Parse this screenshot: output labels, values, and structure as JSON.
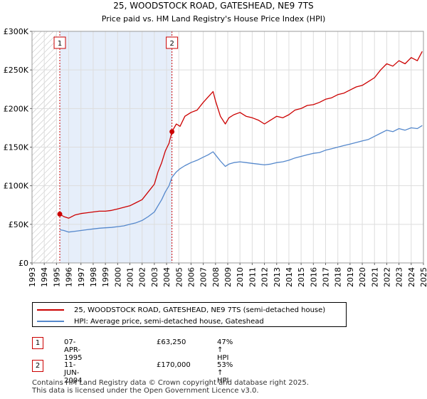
{
  "chart_data": {
    "type": "line",
    "title": "25, WOODSTOCK ROAD, GATESHEAD, NE9 7TS",
    "subtitle": "Price paid vs. HM Land Registry's House Price Index (HPI)",
    "xlim": [
      1993,
      2025
    ],
    "ylim": [
      0,
      300000
    ],
    "yticks": [
      0,
      50000,
      100000,
      150000,
      200000,
      250000,
      300000
    ],
    "ytick_labels": [
      "£0",
      "£50K",
      "£100K",
      "£150K",
      "£200K",
      "£250K",
      "£300K"
    ],
    "xticks": [
      1993,
      1994,
      1995,
      1996,
      1997,
      1998,
      1999,
      2000,
      2001,
      2002,
      2003,
      2004,
      2005,
      2006,
      2007,
      2008,
      2009,
      2010,
      2011,
      2012,
      2013,
      2014,
      2015,
      2016,
      2017,
      2018,
      2019,
      2020,
      2021,
      2022,
      2023,
      2024,
      2025
    ],
    "xtick_labels": [
      "1993",
      "1994",
      "1995",
      "1996",
      "1997",
      "1998",
      "1999",
      "2000",
      "2001",
      "2002",
      "2003",
      "2004",
      "2005",
      "2006",
      "2007",
      "2008",
      "2009",
      "2010",
      "2011",
      "2012",
      "2013",
      "2014",
      "2015",
      "2016",
      "2017",
      "2018",
      "2019",
      "2020",
      "2021",
      "2022",
      "2023",
      "2024",
      "2025"
    ],
    "grid": true,
    "hatch_until": 1995.0,
    "shade_range": [
      1995.27,
      2004.44
    ],
    "series": [
      {
        "name": "25, WOODSTOCK ROAD, GATESHEAD, NE9 7TS (semi-detached house)",
        "color": "#cc0000",
        "x": [
          1995.27,
          1995.6,
          1996.0,
          1996.5,
          1997.0,
          1997.5,
          1998.0,
          1998.5,
          1999.0,
          1999.5,
          2000.0,
          2000.5,
          2001.0,
          2001.5,
          2002.0,
          2002.5,
          2003.0,
          2003.3,
          2003.6,
          2003.9,
          2004.2,
          2004.44,
          2004.8,
          2005.1,
          2005.5,
          2006.0,
          2006.5,
          2007.0,
          2007.4,
          2007.8,
          2008.0,
          2008.4,
          2008.8,
          2009.1,
          2009.5,
          2010.0,
          2010.5,
          2011.0,
          2011.5,
          2012.0,
          2012.5,
          2013.0,
          2013.5,
          2014.0,
          2014.5,
          2015.0,
          2015.5,
          2016.0,
          2016.5,
          2017.0,
          2017.5,
          2018.0,
          2018.5,
          2019.0,
          2019.5,
          2020.0,
          2020.5,
          2021.0,
          2021.5,
          2022.0,
          2022.5,
          2023.0,
          2023.5,
          2024.0,
          2024.5,
          2024.9
        ],
        "values": [
          63250,
          60000,
          58000,
          62000,
          64000,
          65000,
          66000,
          67000,
          67000,
          68000,
          70000,
          72000,
          74000,
          78000,
          82000,
          92000,
          102000,
          118000,
          130000,
          145000,
          155000,
          170000,
          180000,
          177000,
          190000,
          195000,
          198000,
          208000,
          215000,
          222000,
          210000,
          190000,
          180000,
          188000,
          192000,
          195000,
          190000,
          188000,
          185000,
          180000,
          185000,
          190000,
          188000,
          192000,
          198000,
          200000,
          204000,
          205000,
          208000,
          212000,
          214000,
          218000,
          220000,
          224000,
          228000,
          230000,
          235000,
          240000,
          250000,
          258000,
          255000,
          262000,
          258000,
          266000,
          262000,
          274000
        ]
      },
      {
        "name": "HPI: Average price, semi-detached house, Gateshead",
        "color": "#5588cc",
        "x": [
          1995.27,
          1995.6,
          1996.0,
          1996.5,
          1997.0,
          1997.5,
          1998.0,
          1998.5,
          1999.0,
          1999.5,
          2000.0,
          2000.5,
          2001.0,
          2001.5,
          2002.0,
          2002.5,
          2003.0,
          2003.3,
          2003.6,
          2003.9,
          2004.2,
          2004.44,
          2004.8,
          2005.1,
          2005.5,
          2006.0,
          2006.5,
          2007.0,
          2007.4,
          2007.8,
          2008.0,
          2008.4,
          2008.8,
          2009.1,
          2009.5,
          2010.0,
          2010.5,
          2011.0,
          2011.5,
          2012.0,
          2012.5,
          2013.0,
          2013.5,
          2014.0,
          2014.5,
          2015.0,
          2015.5,
          2016.0,
          2016.5,
          2017.0,
          2017.5,
          2018.0,
          2018.5,
          2019.0,
          2019.5,
          2020.0,
          2020.5,
          2021.0,
          2021.5,
          2022.0,
          2022.5,
          2023.0,
          2023.5,
          2024.0,
          2024.5,
          2024.9
        ],
        "values": [
          43000,
          42000,
          40000,
          41000,
          42000,
          43000,
          44000,
          45000,
          45500,
          46000,
          47000,
          48000,
          50000,
          52000,
          55000,
          60000,
          66000,
          74000,
          82000,
          92000,
          100000,
          111000,
          118000,
          122000,
          126000,
          130000,
          133000,
          137000,
          140000,
          144000,
          140000,
          132000,
          125000,
          128000,
          130000,
          131000,
          130000,
          129000,
          128000,
          127000,
          128000,
          130000,
          131000,
          133000,
          136000,
          138000,
          140000,
          142000,
          143000,
          146000,
          148000,
          150000,
          152000,
          154000,
          156000,
          158000,
          160000,
          164000,
          168000,
          172000,
          170000,
          174000,
          172000,
          175000,
          174000,
          178000
        ]
      }
    ],
    "sales": [
      {
        "label": "1",
        "x": 1995.27,
        "y": 63250
      },
      {
        "label": "2",
        "x": 2004.44,
        "y": 170000
      }
    ]
  },
  "legend": {
    "entry1": "25, WOODSTOCK ROAD, GATESHEAD, NE9 7TS (semi-detached house)",
    "entry2": "HPI: Average price, semi-detached house, Gateshead"
  },
  "annotations": [
    {
      "label": "1",
      "date": "07-APR-1995",
      "price": "£63,250",
      "hpi": "47% ↑ HPI"
    },
    {
      "label": "2",
      "date": "11-JUN-2004",
      "price": "£170,000",
      "hpi": "53% ↑ HPI"
    }
  ],
  "footer": {
    "line1": "Contains HM Land Registry data © Crown copyright and database right 2025.",
    "line2": "This data is licensed under the Open Government Licence v3.0."
  }
}
